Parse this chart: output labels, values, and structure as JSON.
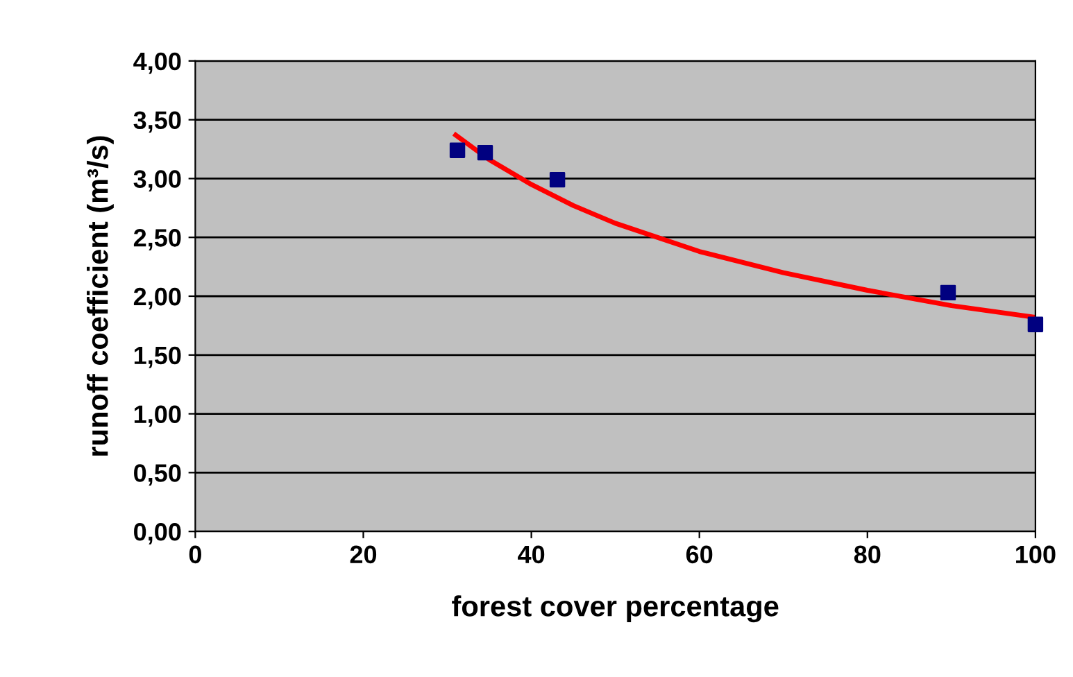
{
  "chart_data": {
    "type": "scatter",
    "xlabel": "forest cover percentage",
    "ylabel": "runoff coefficient (m³/s)",
    "series": [
      {
        "color": "#000080",
        "marker": "square",
        "x": [
          31.2,
          34.5,
          43.1,
          89.6,
          100
        ],
        "values": [
          3.24,
          3.22,
          2.99,
          2.03,
          1.76
        ]
      },
      {
        "type": "line",
        "color": "#ff0000",
        "line_style": "solid",
        "marker": "none",
        "x": [
          31,
          35,
          40,
          45,
          50,
          60,
          70,
          80,
          90,
          100
        ],
        "values": [
          3.37,
          3.16,
          2.95,
          2.77,
          2.62,
          2.38,
          2.2,
          2.05,
          1.92,
          1.82
        ]
      }
    ],
    "xlim": [
      0,
      100
    ],
    "xticks": [
      0,
      20,
      40,
      60,
      80,
      100
    ],
    "ylim": [
      0,
      4
    ],
    "yticks": [
      {
        "value": 0,
        "label": "0,00"
      },
      {
        "value": 0.5,
        "label": "0,50"
      },
      {
        "value": 1,
        "label": "1,00"
      },
      {
        "value": 1.5,
        "label": "1,50"
      },
      {
        "value": 2,
        "label": "2,00"
      },
      {
        "value": 2.5,
        "label": "2,50"
      },
      {
        "value": 3,
        "label": "3,00"
      },
      {
        "value": 3.5,
        "label": "3,50"
      },
      {
        "value": 4,
        "label": "4,00"
      }
    ],
    "grid": "y",
    "legend": false
  }
}
